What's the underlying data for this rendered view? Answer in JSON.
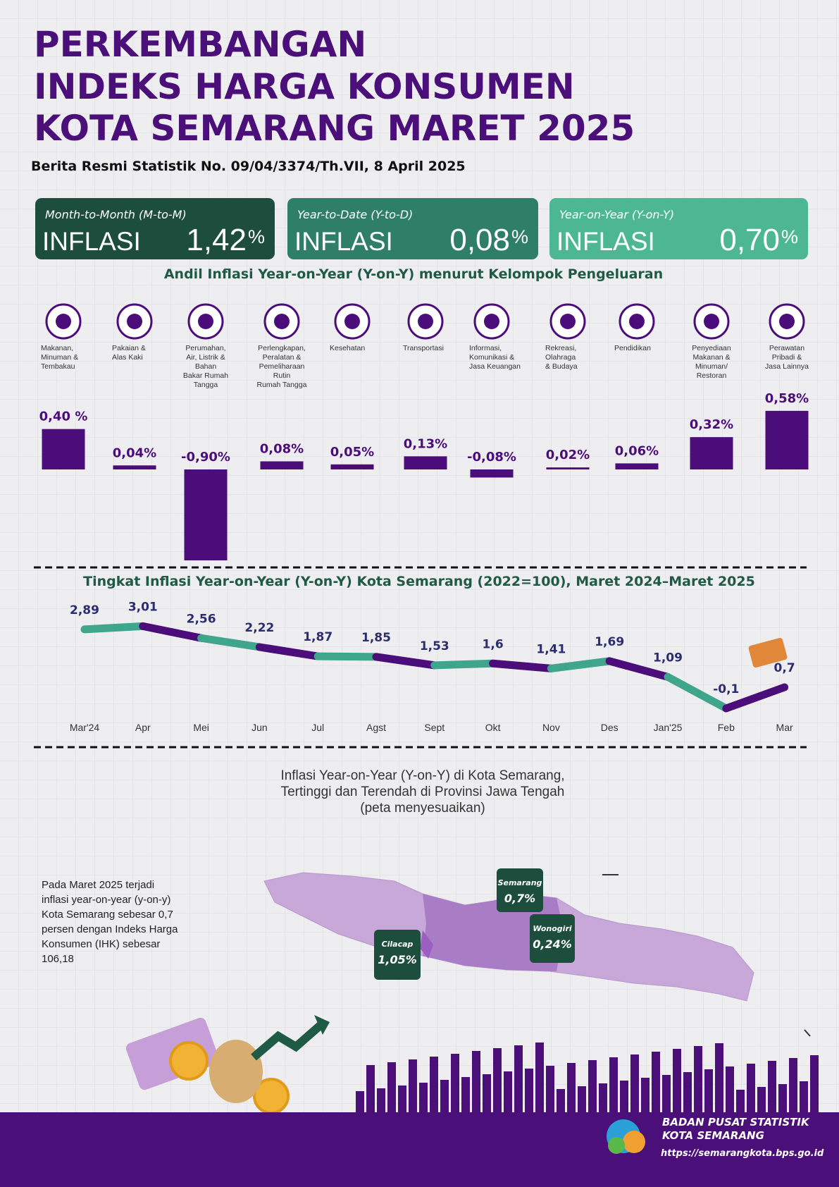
{
  "header": {
    "title": [
      "PERKEMBANGAN",
      "INDEKS HARGA KONSUMEN",
      "KOTA SEMARANG MARET 2025"
    ],
    "subtitle": "Berita Resmi Statistik No. 09/04/3374/Th.VII, 8 April 2025"
  },
  "cards": [
    {
      "label": "Month-to-Month (M-to-M)",
      "name": "INFLASI",
      "value": "1,42",
      "unit": "%",
      "color": "#1d4d3c"
    },
    {
      "label": "Year-to-Date (Y-to-D)",
      "name": "INFLASI",
      "value": "0,08",
      "unit": "%",
      "color": "#2e7f66"
    },
    {
      "label": "Year-on-Year (Y-on-Y)",
      "name": "INFLASI",
      "value": "0,70",
      "unit": "%",
      "color": "#4cb792"
    }
  ],
  "chart_data": [
    {
      "type": "bar",
      "title": "Andil Inflasi Year-on-Year (Y-on-Y) menurut Kelompok Pengeluaran",
      "categories": [
        "Makanan,\nMinuman &\nTembakau",
        "Pakaian &\nAlas Kaki",
        "Perumahan,\nAir, Listrik &\nBahan\nBakar Rumah\nTangga",
        "Perlengkapan,\nPeralatan &\nPemeliharaan\nRutin\nRumah Tangga",
        "Kesehatan",
        "Transportasi",
        "Informasi,\nKomunikasi &\nJasa Keuangan",
        "Rekreasi,\nOlahraga\n& Budaya",
        "Pendidikan",
        "Penyediaan\nMakanan &\nMinuman/\nRestoran",
        "Perawatan\nPribadi &\nJasa Lainnya"
      ],
      "values": [
        0.4,
        0.04,
        -0.9,
        0.08,
        0.05,
        0.13,
        -0.08,
        0.02,
        0.06,
        0.32,
        0.58
      ],
      "value_labels": [
        "0,40 %",
        "0,04%",
        "-0,90%",
        "0,08%",
        "0,05%",
        "0,13%",
        "-0,08%",
        "0,02%",
        "0,06%",
        "0,32%",
        "0,58%"
      ],
      "color": "#4b0d7a",
      "ylim": [
        -0.9,
        0.6
      ]
    },
    {
      "type": "line",
      "title": "Tingkat Inflasi Year-on-Year (Y-on-Y) Kota Semarang  (2022=100),  Maret 2024–Maret 2025",
      "categories": [
        "Mar'24",
        "Apr",
        "Mei",
        "Jun",
        "Jul",
        "Agst",
        "Sept",
        "Okt",
        "Nov",
        "Des",
        "Jan'25",
        "Feb",
        "Mar"
      ],
      "values": [
        2.89,
        3.01,
        2.56,
        2.22,
        1.87,
        1.85,
        1.53,
        1.6,
        1.41,
        1.69,
        1.09,
        -0.1,
        0.7
      ],
      "value_labels": [
        "2,89",
        "3,01",
        "2,56",
        "2,22",
        "1,87",
        "1,85",
        "1,53",
        "1,6",
        "1,41",
        "1,69",
        "1,09",
        "-0,1",
        "0,7"
      ],
      "colors": [
        "#3fa58c",
        "#4b0d7a"
      ],
      "ylim": [
        -0.5,
        3.5
      ]
    }
  ],
  "map": {
    "title": [
      "Inflasi Year-on-Year (Y-on-Y) di Kota Semarang,",
      "Tertinggi dan Terendah di Provinsi Jawa Tengah",
      "(peta menyesuaikan)"
    ],
    "text": [
      "Pada Maret 2025 terjadi",
      "inflasi year-on-year (y-on-y)",
      "Kota Semarang sebesar 0,7",
      "persen dengan Indeks Harga",
      "Konsumen (IHK) sebesar",
      "106,18"
    ],
    "callouts": [
      {
        "name": "Semarang",
        "value": "0,7%"
      },
      {
        "name": "Wonogiri",
        "value": "0,24%"
      },
      {
        "name": "Cilacap",
        "value": "1,05%"
      }
    ]
  },
  "footer": {
    "org": [
      "BADAN PUSAT STATISTIK",
      "KOTA SEMARANG"
    ],
    "url": "https://semarangkota.bps.go.id"
  }
}
